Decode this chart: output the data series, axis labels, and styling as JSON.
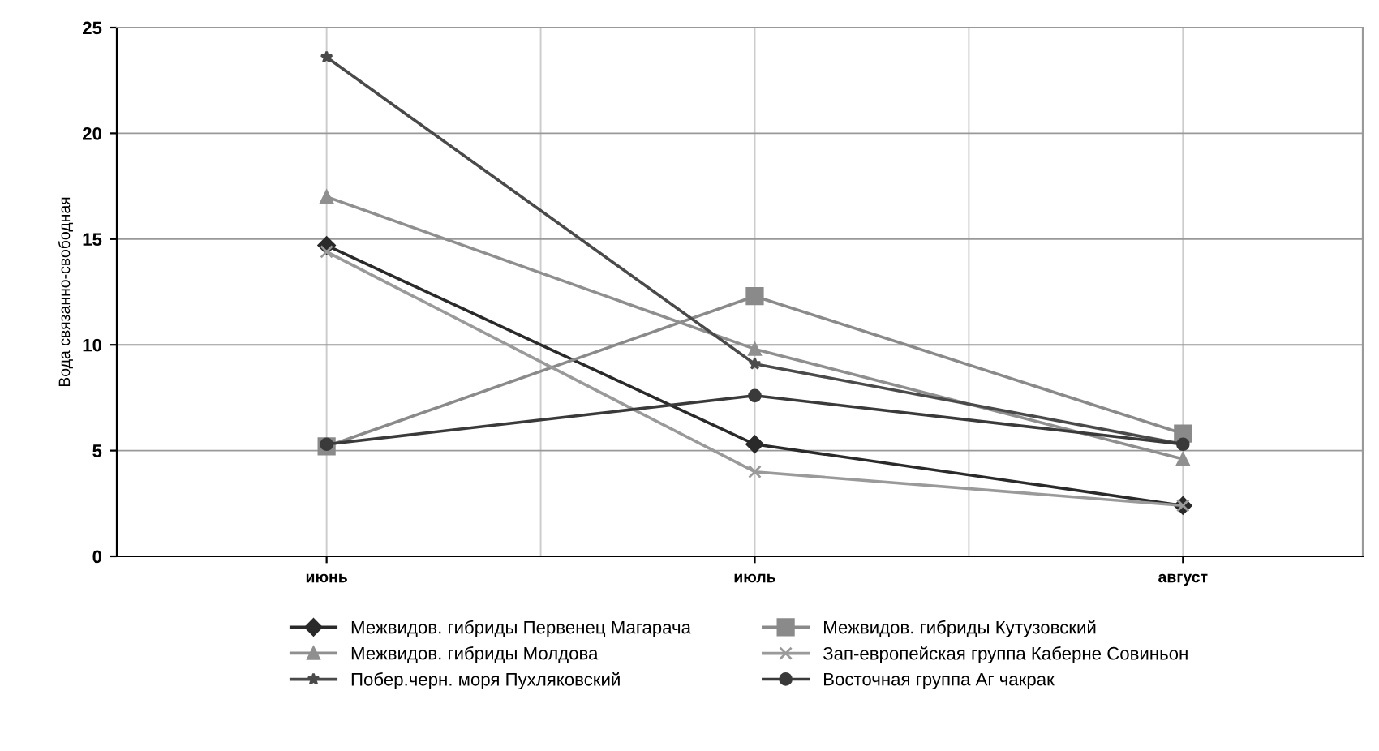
{
  "chart_data": {
    "type": "line",
    "ylabel": "Вода связанно-свободная",
    "categories": [
      "июнь",
      "июль",
      "август"
    ],
    "ylim": [
      0,
      25
    ],
    "yticks": [
      0,
      5,
      10,
      15,
      20,
      25
    ],
    "grid": true,
    "legend": "bottom",
    "series": [
      {
        "name": "Межвидов. гибриды Первенец Магарача",
        "color": "#2a2a2a",
        "marker": "diamond",
        "values": [
          14.7,
          5.3,
          2.4
        ]
      },
      {
        "name": "Межвидов. гибриды Кутузовский",
        "color": "#8a8a8a",
        "marker": "square",
        "values": [
          5.2,
          12.3,
          5.8
        ]
      },
      {
        "name": "Межвидов. гибриды Молдова",
        "color": "#8f8f8f",
        "marker": "triangle",
        "values": [
          17.0,
          9.8,
          4.6
        ]
      },
      {
        "name": "Зап-европейская группа Каберне Совиньон",
        "color": "#9a9a9a",
        "marker": "cross",
        "values": [
          14.4,
          4.0,
          2.4
        ]
      },
      {
        "name": "Побер.черн. моря Пухляковский",
        "color": "#4a4a4a",
        "marker": "star",
        "values": [
          23.6,
          9.1,
          5.3
        ]
      },
      {
        "name": "Восточная группа Аг чакрак",
        "color": "#3a3a3a",
        "marker": "circle",
        "values": [
          5.3,
          7.6,
          5.3
        ]
      }
    ]
  }
}
